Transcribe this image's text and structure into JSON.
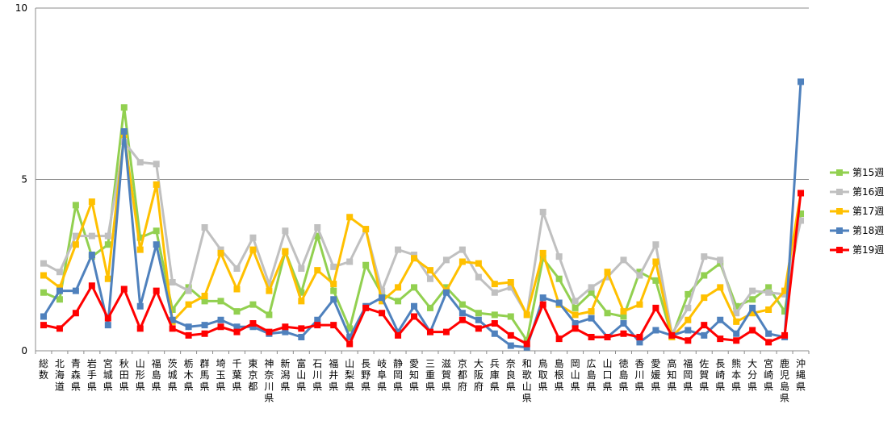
{
  "chart_data": {
    "type": "line",
    "ylim": [
      0,
      10
    ],
    "yticks": [
      0,
      5,
      10
    ],
    "grid": true,
    "legend_position": "right",
    "categories": [
      "総数",
      "北海道",
      "青森県",
      "岩手県",
      "宮城県",
      "秋田県",
      "山形県",
      "福島県",
      "茨城県",
      "栃木県",
      "群馬県",
      "埼玉県",
      "千葉県",
      "東京都",
      "神奈川県",
      "新潟県",
      "富山県",
      "石川県",
      "福井県",
      "山梨県",
      "長野県",
      "岐阜県",
      "静岡県",
      "愛知県",
      "三重県",
      "滋賀県",
      "京都府",
      "大阪府",
      "兵庫県",
      "奈良県",
      "和歌山県",
      "鳥取県",
      "島根県",
      "岡山県",
      "広島県",
      "山口県",
      "徳島県",
      "香川県",
      "愛媛県",
      "高知県",
      "福岡県",
      "佐賀県",
      "長崎県",
      "熊本県",
      "大分県",
      "宮崎県",
      "鹿児島県",
      "沖縄県"
    ],
    "series": [
      {
        "name": "第15週",
        "color": "#92d050",
        "values": [
          1.7,
          1.5,
          4.25,
          2.75,
          3.1,
          7.1,
          3.3,
          3.5,
          1.2,
          1.85,
          1.45,
          1.45,
          1.15,
          1.35,
          1.05,
          2.9,
          1.7,
          3.35,
          1.75,
          0.65,
          2.5,
          1.65,
          1.45,
          1.85,
          1.25,
          1.85,
          1.35,
          1.1,
          1.05,
          1.0,
          0.3,
          2.7,
          2.1,
          1.25,
          1.7,
          1.1,
          1.0,
          2.3,
          2.05,
          0.4,
          1.65,
          2.2,
          2.55,
          1.3,
          1.5,
          1.85,
          1.15,
          4.0
        ]
      },
      {
        "name": "第16週",
        "color": "#c0c0c0",
        "values": [
          2.55,
          2.3,
          3.35,
          3.35,
          3.35,
          6.1,
          5.5,
          5.45,
          2.0,
          1.75,
          3.6,
          2.95,
          2.4,
          3.3,
          1.95,
          3.5,
          2.4,
          3.6,
          2.45,
          2.6,
          3.55,
          1.75,
          2.95,
          2.8,
          2.1,
          2.65,
          2.95,
          2.15,
          1.7,
          1.85,
          1.05,
          4.05,
          2.75,
          1.45,
          1.85,
          2.15,
          2.65,
          2.2,
          3.1,
          0.5,
          1.25,
          2.75,
          2.65,
          1.1,
          1.75,
          1.7,
          1.65,
          3.8
        ]
      },
      {
        "name": "第17週",
        "color": "#ffc000",
        "values": [
          2.2,
          1.85,
          3.1,
          4.35,
          2.1,
          6.3,
          2.95,
          4.85,
          0.85,
          1.35,
          1.6,
          2.85,
          1.8,
          2.95,
          1.75,
          2.9,
          1.45,
          2.35,
          1.95,
          3.9,
          3.55,
          1.45,
          1.85,
          2.7,
          2.35,
          1.75,
          2.6,
          2.55,
          1.95,
          2.0,
          1.05,
          2.85,
          1.35,
          1.05,
          1.15,
          2.3,
          1.15,
          1.35,
          2.6,
          0.4,
          0.9,
          1.55,
          1.85,
          0.85,
          1.1,
          1.2,
          1.75,
          4.6
        ]
      },
      {
        "name": "第18週",
        "color": "#4f81bd",
        "values": [
          1.0,
          1.75,
          1.75,
          2.8,
          0.75,
          6.4,
          1.3,
          3.1,
          0.9,
          0.7,
          0.75,
          0.9,
          0.7,
          0.7,
          0.5,
          0.55,
          0.4,
          0.9,
          1.5,
          0.4,
          1.3,
          1.55,
          0.55,
          1.3,
          0.55,
          1.7,
          1.1,
          0.9,
          0.5,
          0.15,
          0.1,
          1.55,
          1.4,
          0.8,
          0.95,
          0.4,
          0.8,
          0.25,
          0.6,
          0.45,
          0.6,
          0.45,
          0.9,
          0.5,
          1.25,
          0.5,
          0.4,
          7.85
        ]
      },
      {
        "name": "第19週",
        "color": "#ff0000",
        "values": [
          0.75,
          0.65,
          1.1,
          1.9,
          0.95,
          1.8,
          0.65,
          1.75,
          0.65,
          0.45,
          0.5,
          0.7,
          0.55,
          0.8,
          0.55,
          0.7,
          0.65,
          0.75,
          0.75,
          0.2,
          1.25,
          1.1,
          0.45,
          1.0,
          0.55,
          0.55,
          0.9,
          0.65,
          0.8,
          0.45,
          0.2,
          1.35,
          0.35,
          0.65,
          0.4,
          0.4,
          0.5,
          0.4,
          1.25,
          0.45,
          0.3,
          0.75,
          0.35,
          0.3,
          0.6,
          0.25,
          0.45,
          4.6
        ]
      }
    ]
  }
}
